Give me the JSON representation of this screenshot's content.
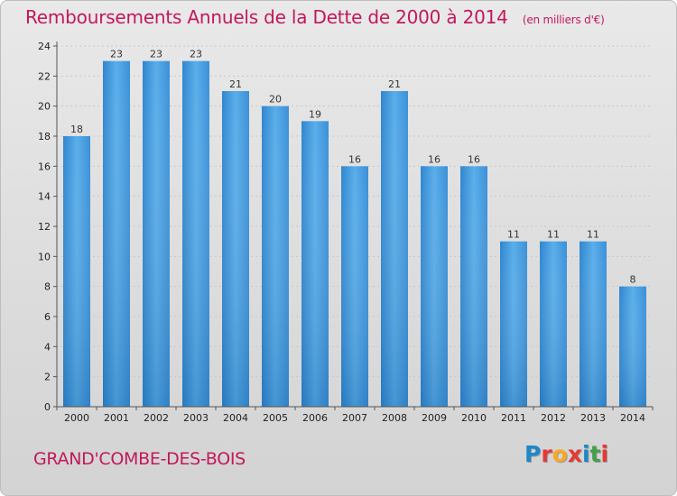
{
  "chart_data": {
    "type": "bar",
    "title": "Remboursements Annuels de la Dette de 2000 à 2014",
    "unit": "(en milliers d'€)",
    "categories": [
      "2000",
      "2001",
      "2002",
      "2003",
      "2004",
      "2005",
      "2006",
      "2007",
      "2008",
      "2009",
      "2010",
      "2011",
      "2012",
      "2013",
      "2014"
    ],
    "values": [
      18,
      23,
      23,
      23,
      21,
      20,
      19,
      16,
      21,
      16,
      16,
      11,
      11,
      11,
      8
    ],
    "ylim": [
      0,
      24
    ],
    "yticks": [
      0,
      2,
      4,
      6,
      8,
      10,
      12,
      14,
      16,
      18,
      20,
      22,
      24
    ],
    "xlabel": "",
    "ylabel": "",
    "bar_color": "#4a9fe0"
  },
  "commune": "GRAND'COMBE-DES-BOIS",
  "logo": {
    "letters": [
      "P",
      "r",
      "o",
      "x",
      "i",
      "t",
      "i"
    ],
    "colors": [
      "#1e88c8",
      "#e53935",
      "#f9a825",
      "#e53935",
      "#1e88c8",
      "#43a047",
      "#e53935"
    ]
  }
}
